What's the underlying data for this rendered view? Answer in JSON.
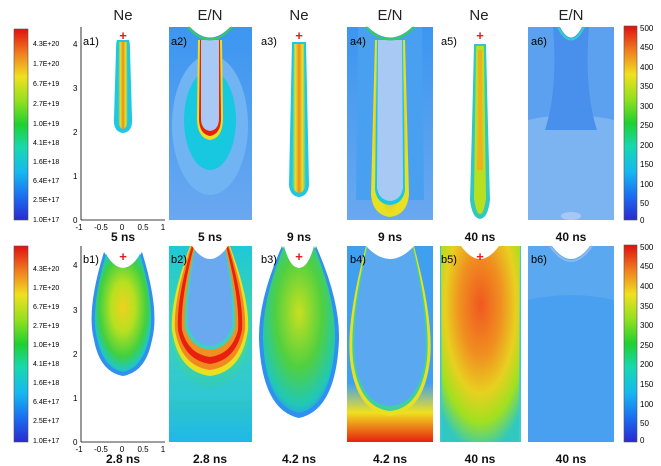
{
  "column_headers": [
    "Ne",
    "E/N",
    "Ne",
    "E/N",
    "Ne",
    "E/N"
  ],
  "rows": [
    {
      "panels": [
        {
          "label": "a1)",
          "time": "5 ns",
          "quantity": "Ne"
        },
        {
          "label": "a2)",
          "time": "5 ns",
          "quantity": "E/N"
        },
        {
          "label": "a3)",
          "time": "9 ns",
          "quantity": "Ne"
        },
        {
          "label": "a4)",
          "time": "9 ns",
          "quantity": "E/N"
        },
        {
          "label": "a5)",
          "time": "40 ns",
          "quantity": "Ne"
        },
        {
          "label": "a6)",
          "time": "40 ns",
          "quantity": "E/N"
        }
      ]
    },
    {
      "panels": [
        {
          "label": "b1)",
          "time": "2.8 ns",
          "quantity": "Ne"
        },
        {
          "label": "b2)",
          "time": "2.8 ns",
          "quantity": "E/N"
        },
        {
          "label": "b3)",
          "time": "4.2 ns",
          "quantity": "Ne"
        },
        {
          "label": "b4)",
          "time": "4.2 ns",
          "quantity": "E/N"
        },
        {
          "label": "b5)",
          "time": "40 ns",
          "quantity": "Ne"
        },
        {
          "label": "b6)",
          "time": "40 ns",
          "quantity": "E/N"
        }
      ]
    }
  ],
  "y_ticks": [
    "4",
    "3",
    "2",
    "1",
    "0"
  ],
  "x_ticks": [
    "-1",
    "-0.5",
    "0",
    "0.5",
    "1"
  ],
  "ne_colorbar_ticks": [
    "4.3E+20",
    "1.7E+20",
    "6.7E+19",
    "2.7E+19",
    "1.0E+19",
    "4.1E+18",
    "1.6E+18",
    "6.4E+17",
    "2.5E+17",
    "1.0E+17"
  ],
  "en_colorbar_ticks": [
    "500",
    "450",
    "400",
    "350",
    "300",
    "250",
    "200",
    "150",
    "100",
    "50",
    "0"
  ],
  "electrode_marker": "+",
  "colors": {
    "background_blue": "#5c9cf0",
    "light_blue": "#a9c9f5",
    "cyan": "#1ec8e0",
    "green": "#3ad040",
    "yellow": "#e8e020",
    "orange": "#f08a20",
    "red": "#e82010",
    "marker_red": "#e02020"
  }
}
